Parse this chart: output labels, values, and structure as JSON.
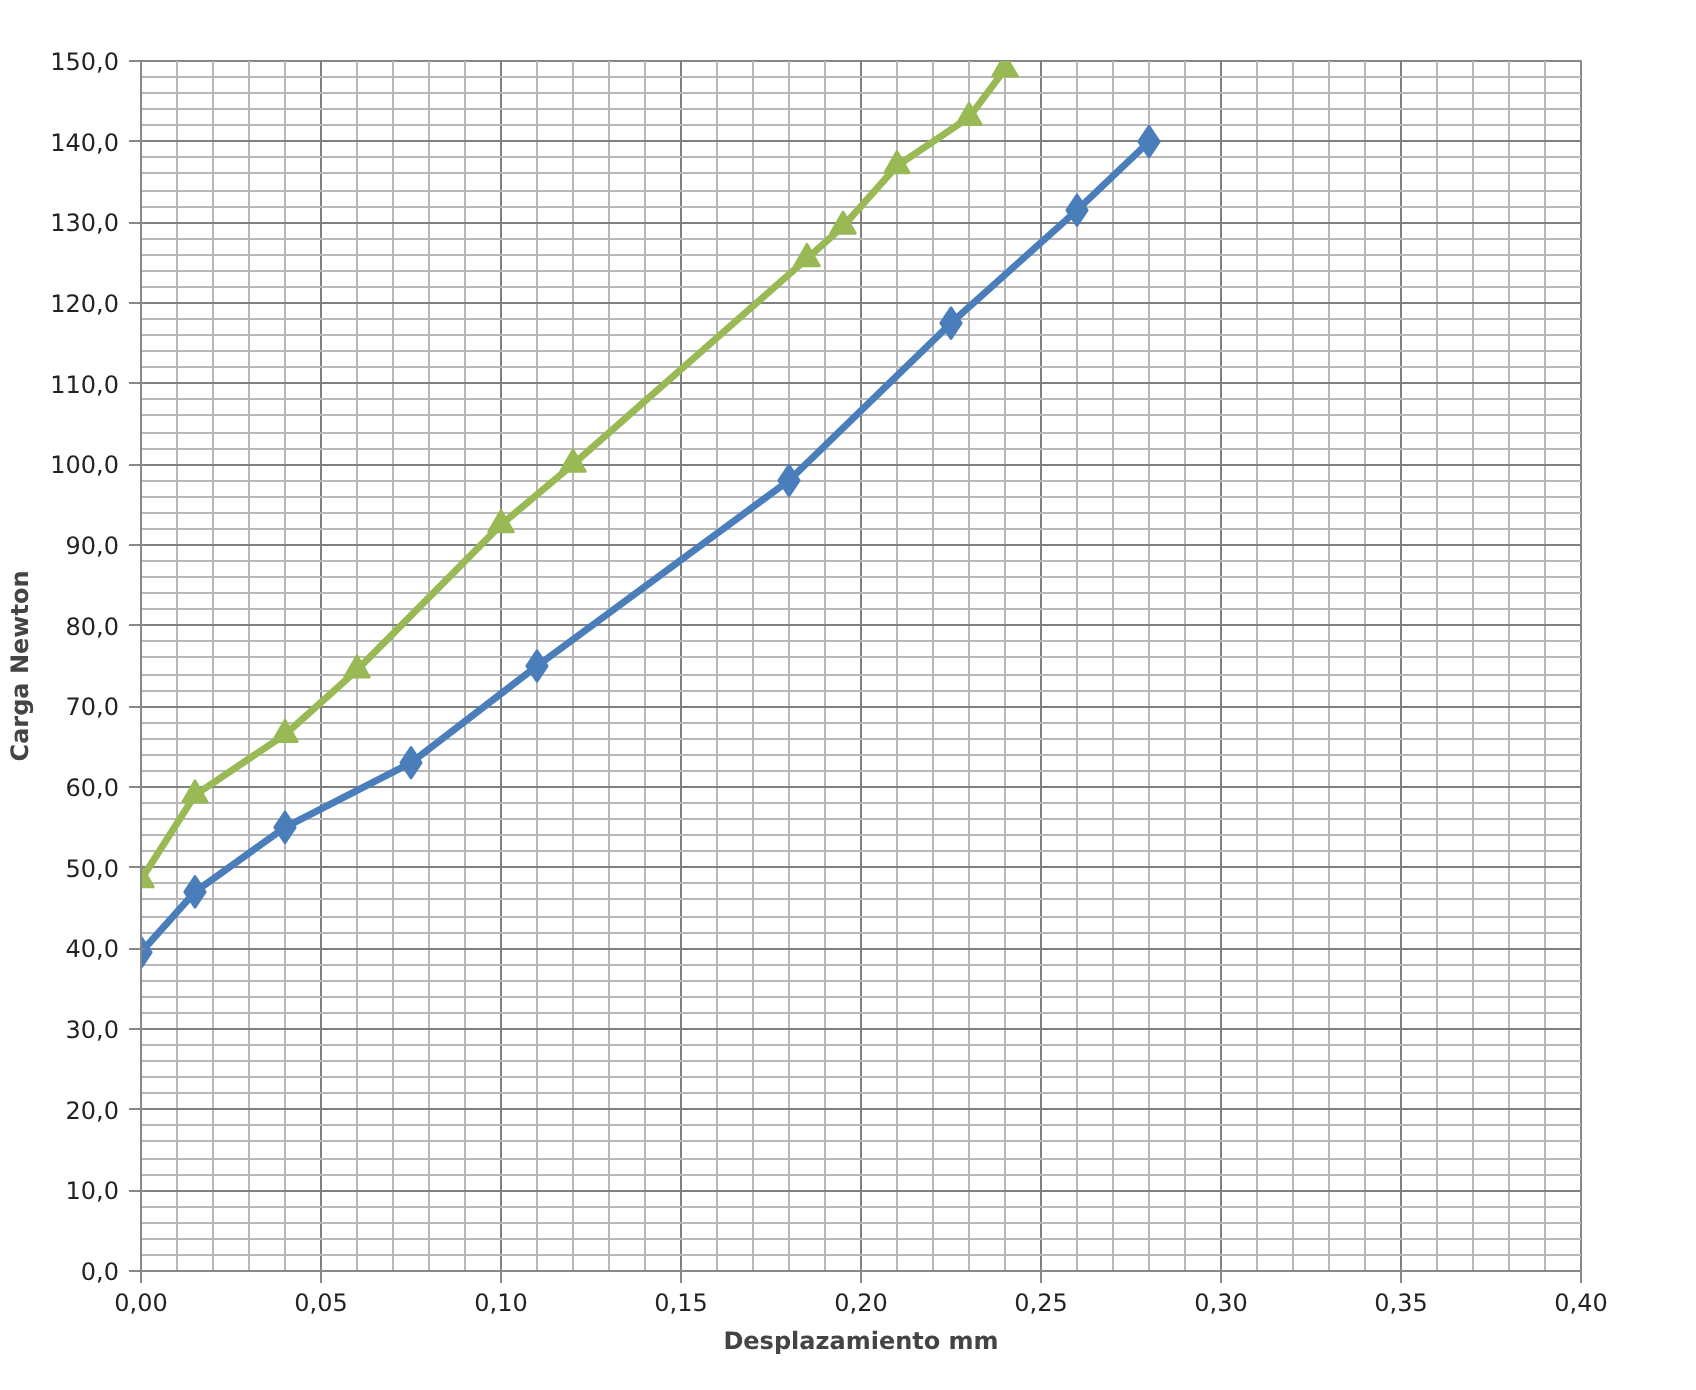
{
  "chart_data": {
    "type": "line",
    "xlabel": "Desplazamiento mm",
    "ylabel": "Carga Newton",
    "xlim": [
      0,
      0.4
    ],
    "ylim": [
      0,
      150
    ],
    "xticks": [
      {
        "value": 0,
        "label": "0,00"
      },
      {
        "value": 0.05,
        "label": "0,05"
      },
      {
        "value": 0.1,
        "label": "0,10"
      },
      {
        "value": 0.15,
        "label": "0,15"
      },
      {
        "value": 0.2,
        "label": "0,20"
      },
      {
        "value": 0.25,
        "label": "0,25"
      },
      {
        "value": 0.3,
        "label": "0,30"
      },
      {
        "value": 0.35,
        "label": "0,35"
      },
      {
        "value": 0.4,
        "label": "0,40"
      }
    ],
    "yticks": [
      {
        "value": 0,
        "label": "0,0"
      },
      {
        "value": 10,
        "label": "10,0"
      },
      {
        "value": 20,
        "label": "20,0"
      },
      {
        "value": 30,
        "label": "30,0"
      },
      {
        "value": 40,
        "label": "40,0"
      },
      {
        "value": 50,
        "label": "50,0"
      },
      {
        "value": 60,
        "label": "60,0"
      },
      {
        "value": 70,
        "label": "70,0"
      },
      {
        "value": 80,
        "label": "80,0"
      },
      {
        "value": 90,
        "label": "90,0"
      },
      {
        "value": 100,
        "label": "100,0"
      },
      {
        "value": 110,
        "label": "110,0"
      },
      {
        "value": 120,
        "label": "120,0"
      },
      {
        "value": 130,
        "label": "130,0"
      },
      {
        "value": 140,
        "label": "140,0"
      },
      {
        "value": 150,
        "label": "150,0"
      }
    ],
    "grid": true,
    "line_style": "solid",
    "series": [
      {
        "color": "#4a7ebb",
        "marker": "diamond",
        "x": [
          0,
          0.015,
          0.04,
          0.075,
          0.11,
          0.18,
          0.225,
          0.26,
          0.28
        ],
        "values": [
          39.5,
          47,
          55,
          63,
          75,
          98,
          117.5,
          131.5,
          140
        ]
      },
      {
        "color": "#98b954",
        "marker": "triangle",
        "x": [
          0,
          0.015,
          0.04,
          0.06,
          0.1,
          0.12,
          0.185,
          0.195,
          0.21,
          0.23,
          0.24
        ],
        "values": [
          48.5,
          59,
          66.5,
          74.5,
          92.5,
          100,
          125.5,
          129.5,
          137,
          143,
          149
        ]
      }
    ]
  }
}
